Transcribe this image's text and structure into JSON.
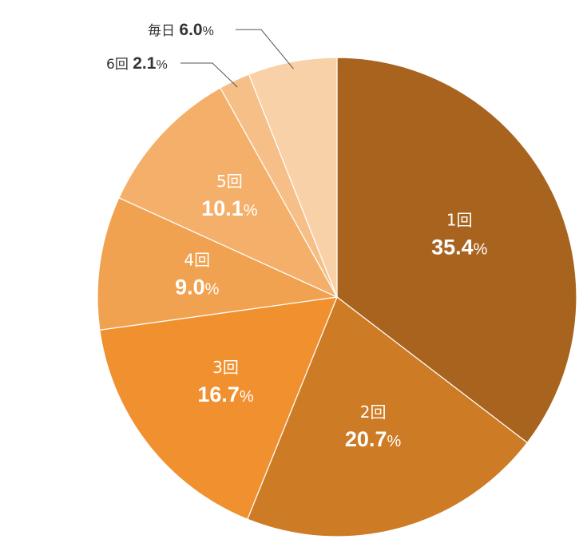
{
  "chart_data": {
    "type": "pie",
    "title": "",
    "unit": "%",
    "slices": [
      {
        "label": "1回",
        "value": 35.4,
        "color": "#A8641F"
      },
      {
        "label": "2回",
        "value": 20.7,
        "color": "#CE7B26"
      },
      {
        "label": "3回",
        "value": 16.7,
        "color": "#F0902F"
      },
      {
        "label": "4回",
        "value": 9.0,
        "color": "#F1A250"
      },
      {
        "label": "5回",
        "value": 10.1,
        "color": "#F4B06A"
      },
      {
        "label": "6回",
        "value": 2.1,
        "color": "#F6BF88"
      },
      {
        "label": "毎日",
        "value": 6.0,
        "color": "#F9D1A8"
      }
    ],
    "start_angle": "12 o'clock",
    "direction": "clockwise"
  }
}
